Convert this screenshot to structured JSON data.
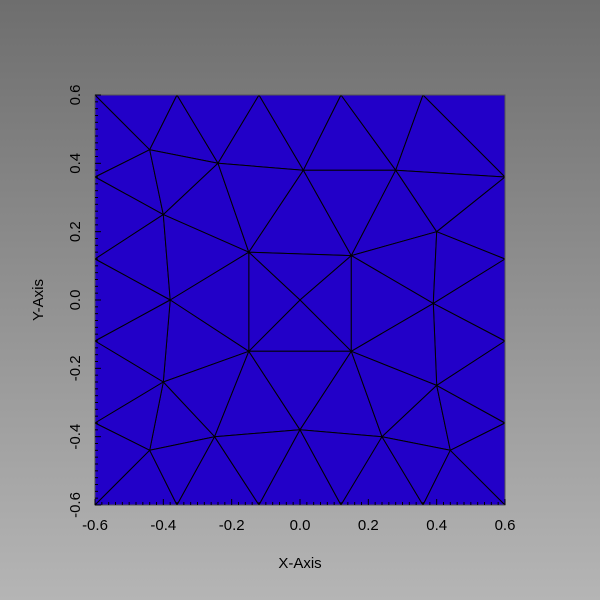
{
  "chart_data": {
    "type": "mesh",
    "xlabel": "X-Axis",
    "ylabel": "Y-Axis",
    "xlim": [
      -0.6,
      0.6
    ],
    "ylim": [
      -0.6,
      0.6
    ],
    "xticks": [
      "-0.6",
      "-0.4",
      "-0.2",
      "0.0",
      "0.2",
      "0.4",
      "0.6"
    ],
    "yticks": [
      "-0.6",
      "-0.4",
      "-0.2",
      "0.0",
      "0.2",
      "0.4",
      "0.6"
    ],
    "grid": false,
    "fill_color": "#2200c8",
    "edge_color": "#000000",
    "vertices": [
      [
        -0.6,
        0.6
      ],
      [
        -0.36,
        0.6
      ],
      [
        -0.12,
        0.6
      ],
      [
        0.12,
        0.6
      ],
      [
        0.36,
        0.6
      ],
      [
        0.6,
        0.6
      ],
      [
        -0.6,
        0.36
      ],
      [
        -0.44,
        0.44
      ],
      [
        -0.24,
        0.4
      ],
      [
        0.01,
        0.38
      ],
      [
        0.28,
        0.38
      ],
      [
        0.6,
        0.36
      ],
      [
        -0.6,
        0.12
      ],
      [
        -0.4,
        0.25
      ],
      [
        -0.15,
        0.14
      ],
      [
        0.15,
        0.13
      ],
      [
        0.4,
        0.2
      ],
      [
        0.6,
        0.12
      ],
      [
        -0.38,
        0.0
      ],
      [
        0.0,
        0.0
      ],
      [
        -0.6,
        -0.12
      ],
      [
        -0.15,
        -0.15
      ],
      [
        0.15,
        -0.15
      ],
      [
        0.39,
        -0.01
      ],
      [
        0.6,
        -0.12
      ],
      [
        -0.4,
        -0.24
      ],
      [
        0.4,
        -0.25
      ],
      [
        -0.6,
        -0.36
      ],
      [
        -0.44,
        -0.44
      ],
      [
        -0.25,
        -0.4
      ],
      [
        0.0,
        -0.38
      ],
      [
        0.24,
        -0.4
      ],
      [
        0.44,
        -0.44
      ],
      [
        0.6,
        -0.36
      ],
      [
        -0.6,
        -0.6
      ],
      [
        -0.36,
        -0.6
      ],
      [
        -0.12,
        -0.6
      ],
      [
        0.12,
        -0.6
      ],
      [
        0.36,
        -0.6
      ],
      [
        0.6,
        -0.6
      ]
    ],
    "triangles": [
      [
        0,
        7,
        6
      ],
      [
        0,
        1,
        7
      ],
      [
        1,
        8,
        7
      ],
      [
        1,
        2,
        8
      ],
      [
        2,
        9,
        8
      ],
      [
        2,
        3,
        9
      ],
      [
        3,
        10,
        9
      ],
      [
        3,
        4,
        10
      ],
      [
        4,
        11,
        10
      ],
      [
        4,
        5,
        11
      ],
      [
        6,
        7,
        13
      ],
      [
        7,
        8,
        13
      ],
      [
        6,
        13,
        12
      ],
      [
        8,
        14,
        13
      ],
      [
        8,
        9,
        14
      ],
      [
        9,
        15,
        14
      ],
      [
        9,
        10,
        15
      ],
      [
        10,
        16,
        15
      ],
      [
        10,
        11,
        16
      ],
      [
        11,
        17,
        16
      ],
      [
        12,
        13,
        18
      ],
      [
        13,
        14,
        18
      ],
      [
        15,
        16,
        23
      ],
      [
        16,
        17,
        23
      ],
      [
        14,
        15,
        19
      ],
      [
        15,
        22,
        19
      ],
      [
        22,
        21,
        19
      ],
      [
        21,
        14,
        19
      ],
      [
        14,
        21,
        18
      ],
      [
        15,
        23,
        22
      ],
      [
        12,
        18,
        20
      ],
      [
        18,
        21,
        25
      ],
      [
        18,
        25,
        20
      ],
      [
        17,
        24,
        23
      ],
      [
        23,
        24,
        26
      ],
      [
        22,
        23,
        26
      ],
      [
        20,
        25,
        27
      ],
      [
        21,
        29,
        25
      ],
      [
        25,
        29,
        28
      ],
      [
        25,
        28,
        27
      ],
      [
        21,
        30,
        29
      ],
      [
        21,
        22,
        30
      ],
      [
        22,
        31,
        30
      ],
      [
        22,
        26,
        31
      ],
      [
        26,
        32,
        31
      ],
      [
        26,
        33,
        32
      ],
      [
        26,
        24,
        33
      ],
      [
        27,
        28,
        34
      ],
      [
        28,
        35,
        34
      ],
      [
        28,
        29,
        35
      ],
      [
        29,
        36,
        35
      ],
      [
        29,
        30,
        36
      ],
      [
        30,
        37,
        36
      ],
      [
        30,
        31,
        37
      ],
      [
        31,
        38,
        37
      ],
      [
        31,
        32,
        38
      ],
      [
        32,
        39,
        38
      ],
      [
        32,
        33,
        39
      ]
    ]
  }
}
